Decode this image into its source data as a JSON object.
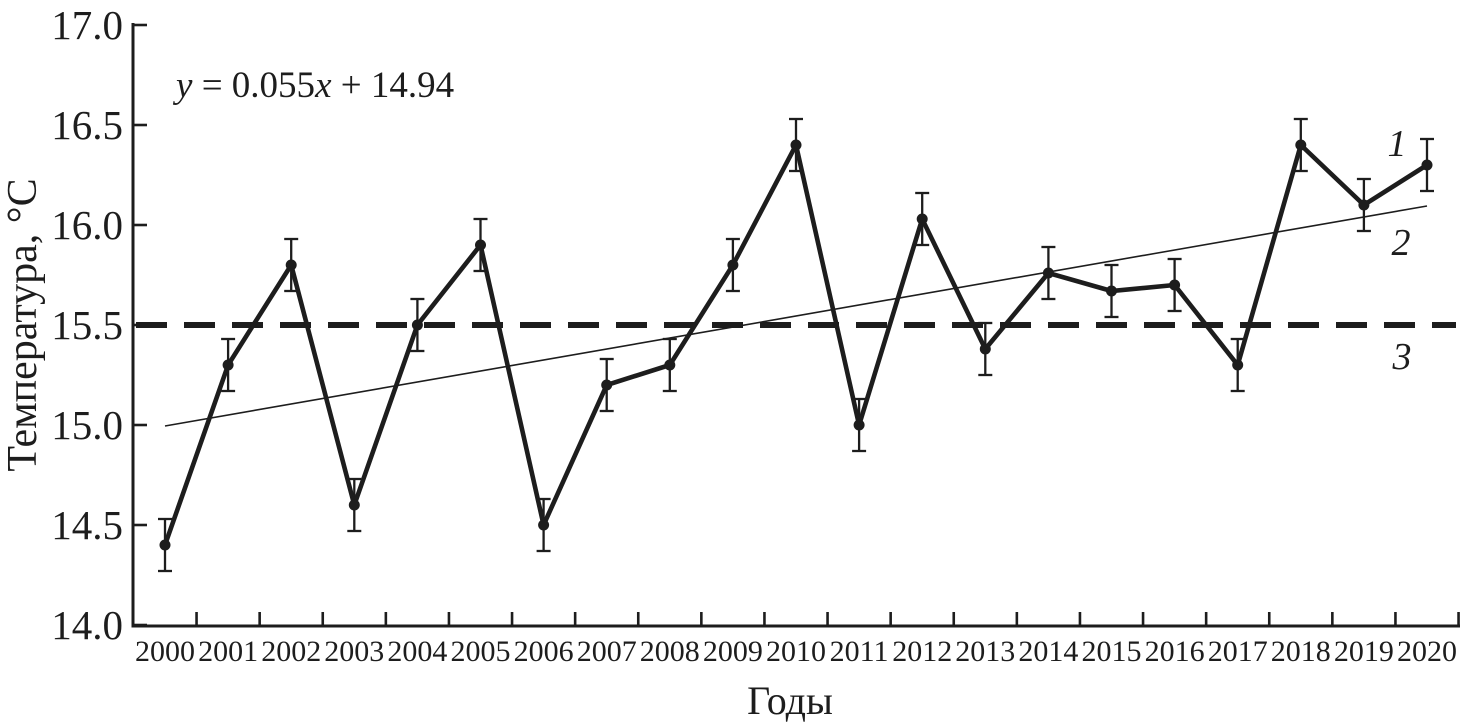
{
  "colors": {
    "ink": "#1d1d1d",
    "background": "#ffffff"
  },
  "chart_data": {
    "type": "line",
    "equation": "y = 0.055x + 14.94",
    "equation_parts": [
      {
        "text": "y",
        "italic": true
      },
      {
        "text": " = 0.055",
        "italic": false
      },
      {
        "text": "x",
        "italic": true
      },
      {
        "text": " + 14.94",
        "italic": false
      }
    ],
    "xlabel": "Годы",
    "ylabel": "Температура, °C",
    "ylim": [
      14.0,
      17.0
    ],
    "y_tick_labels": [
      "14.0",
      "14.5",
      "15.0",
      "15.5",
      "16.0",
      "16.5",
      "17.0"
    ],
    "x": [
      2000,
      2001,
      2002,
      2003,
      2004,
      2005,
      2006,
      2007,
      2008,
      2009,
      2010,
      2011,
      2012,
      2013,
      2014,
      2015,
      2016,
      2017,
      2018,
      2019,
      2020
    ],
    "series": [
      {
        "name": "1",
        "kind": "annual-mean-temperature",
        "values": [
          14.4,
          15.3,
          15.8,
          14.6,
          15.5,
          15.9,
          14.5,
          15.2,
          15.3,
          15.8,
          16.4,
          15.0,
          16.03,
          15.38,
          15.76,
          15.67,
          15.7,
          15.3,
          16.4,
          16.1,
          16.3
        ],
        "error_bar": 0.13
      },
      {
        "name": "2",
        "kind": "linear-trend",
        "slope": 0.055,
        "intercept": 14.94,
        "value_at_2000": 14.995,
        "value_at_2020": 16.095
      },
      {
        "name": "3",
        "kind": "mean-reference-line",
        "value": 15.5
      }
    ],
    "legend_labels": [
      "1",
      "2",
      "3"
    ],
    "grid": false,
    "legend_position": "right-inside"
  }
}
